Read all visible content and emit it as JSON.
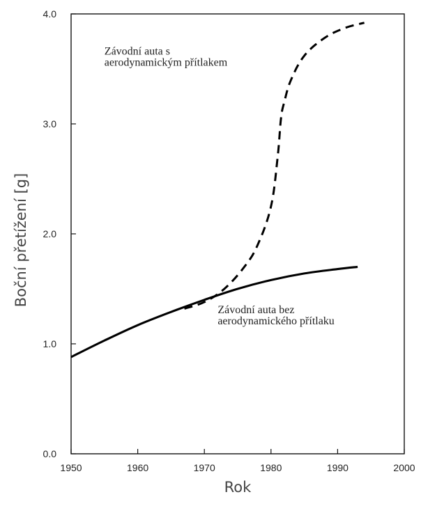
{
  "chart_data": {
    "type": "line",
    "title": "",
    "xlabel": "Rok",
    "ylabel": "Boční přetížení [g]",
    "xlim": [
      1950,
      2000
    ],
    "ylim": [
      0.0,
      4.0
    ],
    "x_ticks": [
      1950,
      1960,
      1970,
      1980,
      1990,
      2000
    ],
    "y_ticks": [
      0.0,
      1.0,
      2.0,
      3.0,
      4.0
    ],
    "x_tick_labels": [
      "1950",
      "1960",
      "1970",
      "1980",
      "1990",
      "2000"
    ],
    "y_tick_labels": [
      "0.0",
      "1.0",
      "2.0",
      "3.0",
      "4.0"
    ],
    "grid": false,
    "series": [
      {
        "name": "Závodní auta bez aerodynamického přítlaku",
        "style": "solid",
        "color": "#000000",
        "x": [
          1950,
          1955,
          1960,
          1965,
          1970,
          1975,
          1980,
          1985,
          1990,
          1993
        ],
        "y": [
          0.88,
          1.03,
          1.17,
          1.29,
          1.4,
          1.5,
          1.58,
          1.64,
          1.68,
          1.7
        ]
      },
      {
        "name": "Závodní auta s aerodynamickým přítlakem",
        "style": "dashed",
        "color": "#000000",
        "x": [
          1967,
          1970,
          1973,
          1976,
          1978,
          1980,
          1981,
          1981.5,
          1982,
          1983,
          1985,
          1988,
          1991,
          1994
        ],
        "y": [
          1.32,
          1.38,
          1.5,
          1.7,
          1.9,
          2.25,
          2.7,
          3.05,
          3.2,
          3.4,
          3.62,
          3.78,
          3.87,
          3.92
        ]
      }
    ],
    "annotations": [
      {
        "lines": [
          "Závodní auta s",
          "aerodynamickým přítlakem"
        ],
        "x": 1955,
        "y": 3.63
      },
      {
        "lines": [
          "Závodní auta bez",
          "aerodynamického přítlaku"
        ],
        "x": 1972,
        "y": 1.28
      }
    ]
  }
}
